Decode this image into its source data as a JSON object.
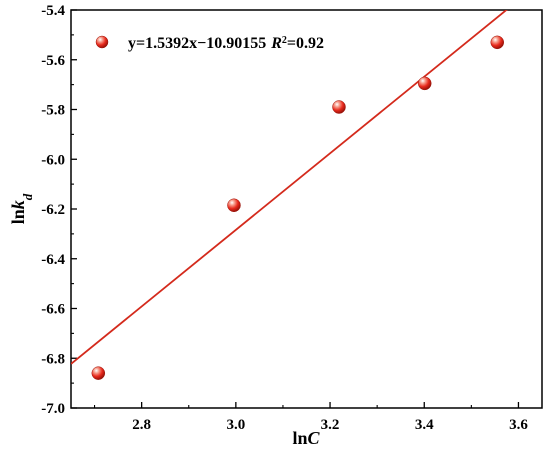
{
  "chart_data": {
    "type": "scatter",
    "xlabel": {
      "prefix": "ln",
      "italic": "C",
      "sub": ""
    },
    "ylabel": {
      "prefix": "ln",
      "italic": "k",
      "sub": "d"
    },
    "xlim": [
      2.65,
      3.65
    ],
    "ylim": [
      -7.0,
      -5.4
    ],
    "xticks": [
      2.8,
      3.0,
      3.2,
      3.4,
      3.6
    ],
    "xtick_labels": [
      "2.8",
      "3.0",
      "3.2",
      "3.4",
      "3.6"
    ],
    "yticks": [
      -7.0,
      -6.8,
      -6.6,
      -6.4,
      -6.2,
      -6.0,
      -5.8,
      -5.6,
      -5.4
    ],
    "ytick_labels": [
      "-7.0",
      "-6.8",
      "-6.6",
      "-6.4",
      "-6.2",
      "-6.0",
      "-5.8",
      "-5.6",
      "-5.4"
    ],
    "series": [
      {
        "x": [
          2.708,
          2.996,
          3.219,
          3.401,
          3.555
        ],
        "y": [
          -6.86,
          -6.185,
          -5.79,
          -5.695,
          -5.53
        ]
      }
    ],
    "fit": {
      "slope": 1.5392,
      "intercept": -10.90155,
      "equation": "y=1.5392x−10.90155",
      "r2_label": "R",
      "r2_value": "=0.92"
    },
    "grid": false,
    "legend_position": "top-left",
    "colors": {
      "marker": "#e8291c",
      "fit_line": "#d42a1c",
      "axis": "#000000"
    }
  }
}
